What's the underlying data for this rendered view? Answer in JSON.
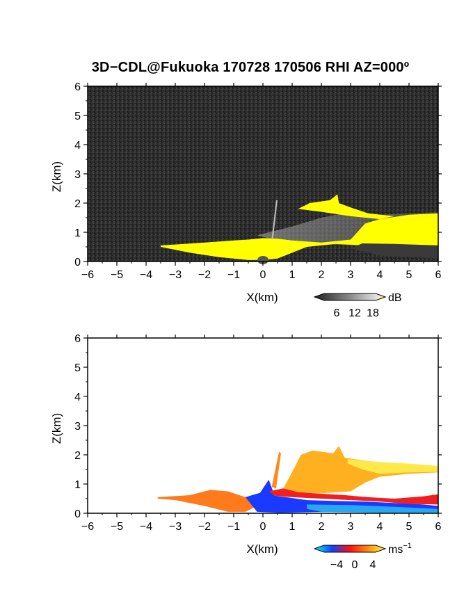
{
  "title": "3D−CDL@Fukuoka 170728 170506 RHI AZ=000º",
  "chart_data": [
    {
      "type": "heatmap",
      "name": "reflectivity-panel",
      "xlabel": "X(km)",
      "ylabel": "Z(km)",
      "xlim": [
        -6,
        6
      ],
      "ylim": [
        0,
        6
      ],
      "xticks": [
        "−6",
        "−5",
        "−4",
        "−3",
        "−2",
        "−1",
        "0",
        "1",
        "2",
        "3",
        "4",
        "5",
        "6"
      ],
      "yticks": [
        "0",
        "1",
        "2",
        "3",
        "4",
        "5",
        "6"
      ],
      "colorbar": {
        "label": "dB",
        "ticks": [
          "6",
          "12",
          "18"
        ],
        "range": [
          0,
          20
        ]
      },
      "background": "#2a2a2a",
      "echo_color": "#ffff00",
      "echo_outline_km": [
        [
          -3.5,
          0.55
        ],
        [
          -3,
          0.58
        ],
        [
          -2,
          0.65
        ],
        [
          -1,
          0.72
        ],
        [
          -0.5,
          0.75
        ],
        [
          0,
          0.8
        ],
        [
          0.5,
          0.78
        ],
        [
          1,
          0.72
        ],
        [
          2,
          0.65
        ],
        [
          3,
          0.75
        ],
        [
          3.5,
          1.3
        ],
        [
          4,
          1.45
        ],
        [
          5,
          1.6
        ],
        [
          6,
          1.65
        ],
        [
          6,
          0.5
        ],
        [
          3.5,
          0.55
        ],
        [
          2.5,
          0.6
        ],
        [
          1.5,
          0.5
        ],
        [
          0.5,
          0.1
        ],
        [
          0,
          0.05
        ],
        [
          -0.5,
          0.05
        ],
        [
          -1.5,
          0.15
        ],
        [
          -2.5,
          0.3
        ],
        [
          -3.5,
          0.5
        ]
      ],
      "upper_echo_km": [
        [
          1.2,
          1.8
        ],
        [
          1.6,
          2.0
        ],
        [
          2.3,
          2.1
        ],
        [
          2.55,
          2.3
        ],
        [
          2.6,
          2.0
        ],
        [
          3,
          1.85
        ],
        [
          3.6,
          1.65
        ],
        [
          4.5,
          1.55
        ],
        [
          4,
          1.45
        ],
        [
          3,
          1.55
        ],
        [
          2,
          1.7
        ],
        [
          1.2,
          1.8
        ]
      ],
      "spike_km": [
        [
          0.3,
          0.8
        ],
        [
          0.45,
          2.1
        ],
        [
          0.5,
          2.1
        ],
        [
          0.35,
          0.8
        ]
      ]
    },
    {
      "type": "heatmap",
      "name": "doppler-velocity-panel",
      "xlabel": "X(km)",
      "ylabel": "Z(km)",
      "xlim": [
        -6,
        6
      ],
      "ylim": [
        0,
        6
      ],
      "xticks": [
        "−6",
        "−5",
        "−4",
        "−3",
        "−2",
        "−1",
        "0",
        "1",
        "2",
        "3",
        "4",
        "5",
        "6"
      ],
      "yticks": [
        "0",
        "1",
        "2",
        "3",
        "4",
        "5",
        "6"
      ],
      "colorbar": {
        "label": "ms",
        "label_exponent": "−1",
        "ticks": [
          "−4",
          "0",
          "4"
        ],
        "range": [
          -5,
          5
        ]
      },
      "regions": [
        {
          "value": 1.5,
          "color": "#ff7a1a",
          "outline_km": [
            [
              -3.6,
              0.55
            ],
            [
              -2.5,
              0.62
            ],
            [
              -1.8,
              0.8
            ],
            [
              -1.2,
              0.75
            ],
            [
              -0.6,
              0.55
            ],
            [
              -0.3,
              0.2
            ],
            [
              -0.6,
              0.05
            ],
            [
              -1.2,
              0.05
            ],
            [
              -2,
              0.25
            ],
            [
              -3,
              0.45
            ],
            [
              -3.6,
              0.5
            ]
          ]
        },
        {
          "value": -3,
          "color": "#1a3aff",
          "outline_km": [
            [
              -0.6,
              0.55
            ],
            [
              -0.1,
              0.7
            ],
            [
              0.2,
              1.15
            ],
            [
              0.4,
              0.6
            ],
            [
              0.8,
              0.55
            ],
            [
              1.5,
              0.45
            ],
            [
              2.5,
              0.42
            ],
            [
              3.5,
              0.4
            ],
            [
              4.5,
              0.35
            ],
            [
              5.5,
              0.3
            ],
            [
              6,
              0.25
            ],
            [
              6,
              0.05
            ],
            [
              4,
              0.05
            ],
            [
              2,
              0.05
            ],
            [
              0.6,
              0.02
            ],
            [
              -0.2,
              0.05
            ]
          ]
        },
        {
          "value": -1.5,
          "color": "#28a8f0",
          "outline_km": [
            [
              1.5,
              0.3
            ],
            [
              3,
              0.28
            ],
            [
              4.5,
              0.22
            ],
            [
              6,
              0.15
            ],
            [
              6,
              0.02
            ],
            [
              4,
              0.02
            ],
            [
              2,
              0.05
            ],
            [
              1.5,
              0.15
            ]
          ]
        },
        {
          "value": 0.5,
          "color": "#f02020",
          "outline_km": [
            [
              0.2,
              0.75
            ],
            [
              0.7,
              0.85
            ],
            [
              1.5,
              0.7
            ],
            [
              2.8,
              0.62
            ],
            [
              3.6,
              0.55
            ],
            [
              4.5,
              0.5
            ],
            [
              5.5,
              0.58
            ],
            [
              6,
              0.65
            ],
            [
              6,
              0.3
            ],
            [
              5,
              0.32
            ],
            [
              4,
              0.4
            ],
            [
              3,
              0.45
            ],
            [
              2,
              0.5
            ],
            [
              1,
              0.55
            ],
            [
              0.4,
              0.6
            ]
          ]
        },
        {
          "value": 3,
          "color": "#ffb020",
          "outline_km": [
            [
              0.7,
              0.85
            ],
            [
              1.1,
              1.6
            ],
            [
              1.3,
              2.0
            ],
            [
              1.7,
              2.15
            ],
            [
              2.4,
              2.05
            ],
            [
              2.6,
              2.3
            ],
            [
              2.8,
              1.9
            ],
            [
              3.5,
              1.8
            ],
            [
              4.5,
              1.7
            ],
            [
              5.5,
              1.65
            ],
            [
              6,
              1.6
            ],
            [
              6,
              1.4
            ],
            [
              5,
              1.35
            ],
            [
              4,
              1.25
            ],
            [
              3.5,
              1.05
            ],
            [
              3,
              0.75
            ],
            [
              2,
              0.68
            ],
            [
              1.2,
              0.72
            ]
          ]
        },
        {
          "value": 4.5,
          "color": "#ffe84a",
          "outline_km": [
            [
              2.9,
              1.85
            ],
            [
              4,
              1.75
            ],
            [
              5,
              1.7
            ],
            [
              6,
              1.62
            ],
            [
              6,
              1.42
            ],
            [
              5,
              1.4
            ],
            [
              4,
              1.35
            ],
            [
              3.4,
              1.5
            ],
            [
              2.9,
              1.7
            ]
          ]
        },
        {
          "value": 2,
          "color": "#ff8a1a",
          "outline_km": [
            [
              0.3,
              0.9
            ],
            [
              0.55,
              2.1
            ],
            [
              0.62,
              2.05
            ],
            [
              0.45,
              0.85
            ]
          ]
        }
      ]
    }
  ]
}
